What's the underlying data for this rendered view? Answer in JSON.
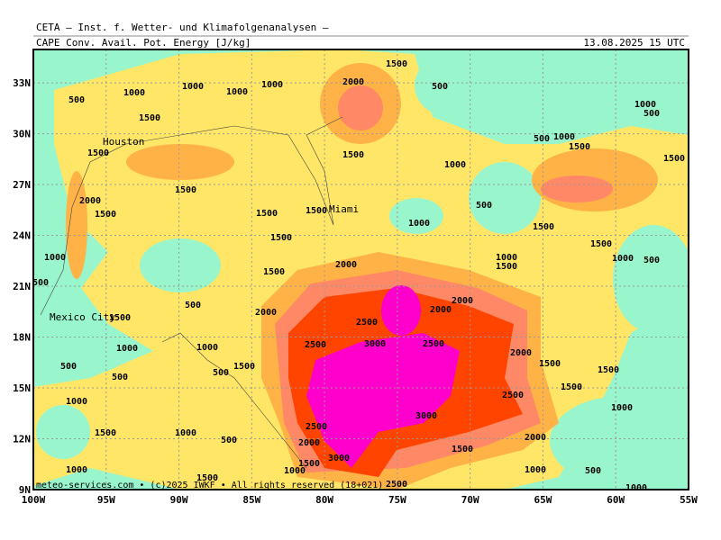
{
  "header": {
    "source": "CETA – Inst. f. Wetter- und Klimafolgenanalysen –",
    "field": "CAPE Conv. Avail. Pot. Energy [J/kg]",
    "valid_time": "13.08.2025 15 UTC"
  },
  "axes": {
    "x_labels": [
      "100W",
      "95W",
      "90W",
      "85W",
      "80W",
      "75W",
      "70W",
      "65W",
      "60W",
      "55W"
    ],
    "y_labels": [
      "9N",
      "12N",
      "15N",
      "18N",
      "21N",
      "24N",
      "27N",
      "30N",
      "33N"
    ]
  },
  "cities": [
    "Houston",
    "Miami",
    "Mexico City"
  ],
  "contour_labels": [
    "1500",
    "2000",
    "500",
    "1000",
    "1000",
    "1000",
    "1000",
    "500",
    "1500",
    "1000",
    "500",
    "500",
    "1000",
    "1500",
    "1500",
    "1500",
    "1500",
    "1000",
    "2000",
    "1500",
    "1500",
    "1500",
    "1500",
    "1000",
    "500",
    "1500",
    "1500",
    "1500",
    "1000",
    "1000",
    "1500",
    "1000",
    "500",
    "500",
    "1500",
    "2000",
    "500",
    "2000",
    "2000",
    "2000",
    "1500",
    "2500",
    "2500",
    "3000",
    "2500",
    "1000",
    "1000",
    "2000",
    "1500",
    "500",
    "500",
    "1500",
    "500",
    "1500",
    "1500",
    "2500",
    "1000",
    "1000",
    "3000",
    "2500",
    "1500",
    "1000",
    "2000",
    "2000",
    "500",
    "1500",
    "1500",
    "3000",
    "1000",
    "1000",
    "1500",
    "1000",
    "500",
    "2500",
    "1000"
  ],
  "footer": "meteo-services.com • (c)2025 IWKF • All rights reserved (18+021)"
}
